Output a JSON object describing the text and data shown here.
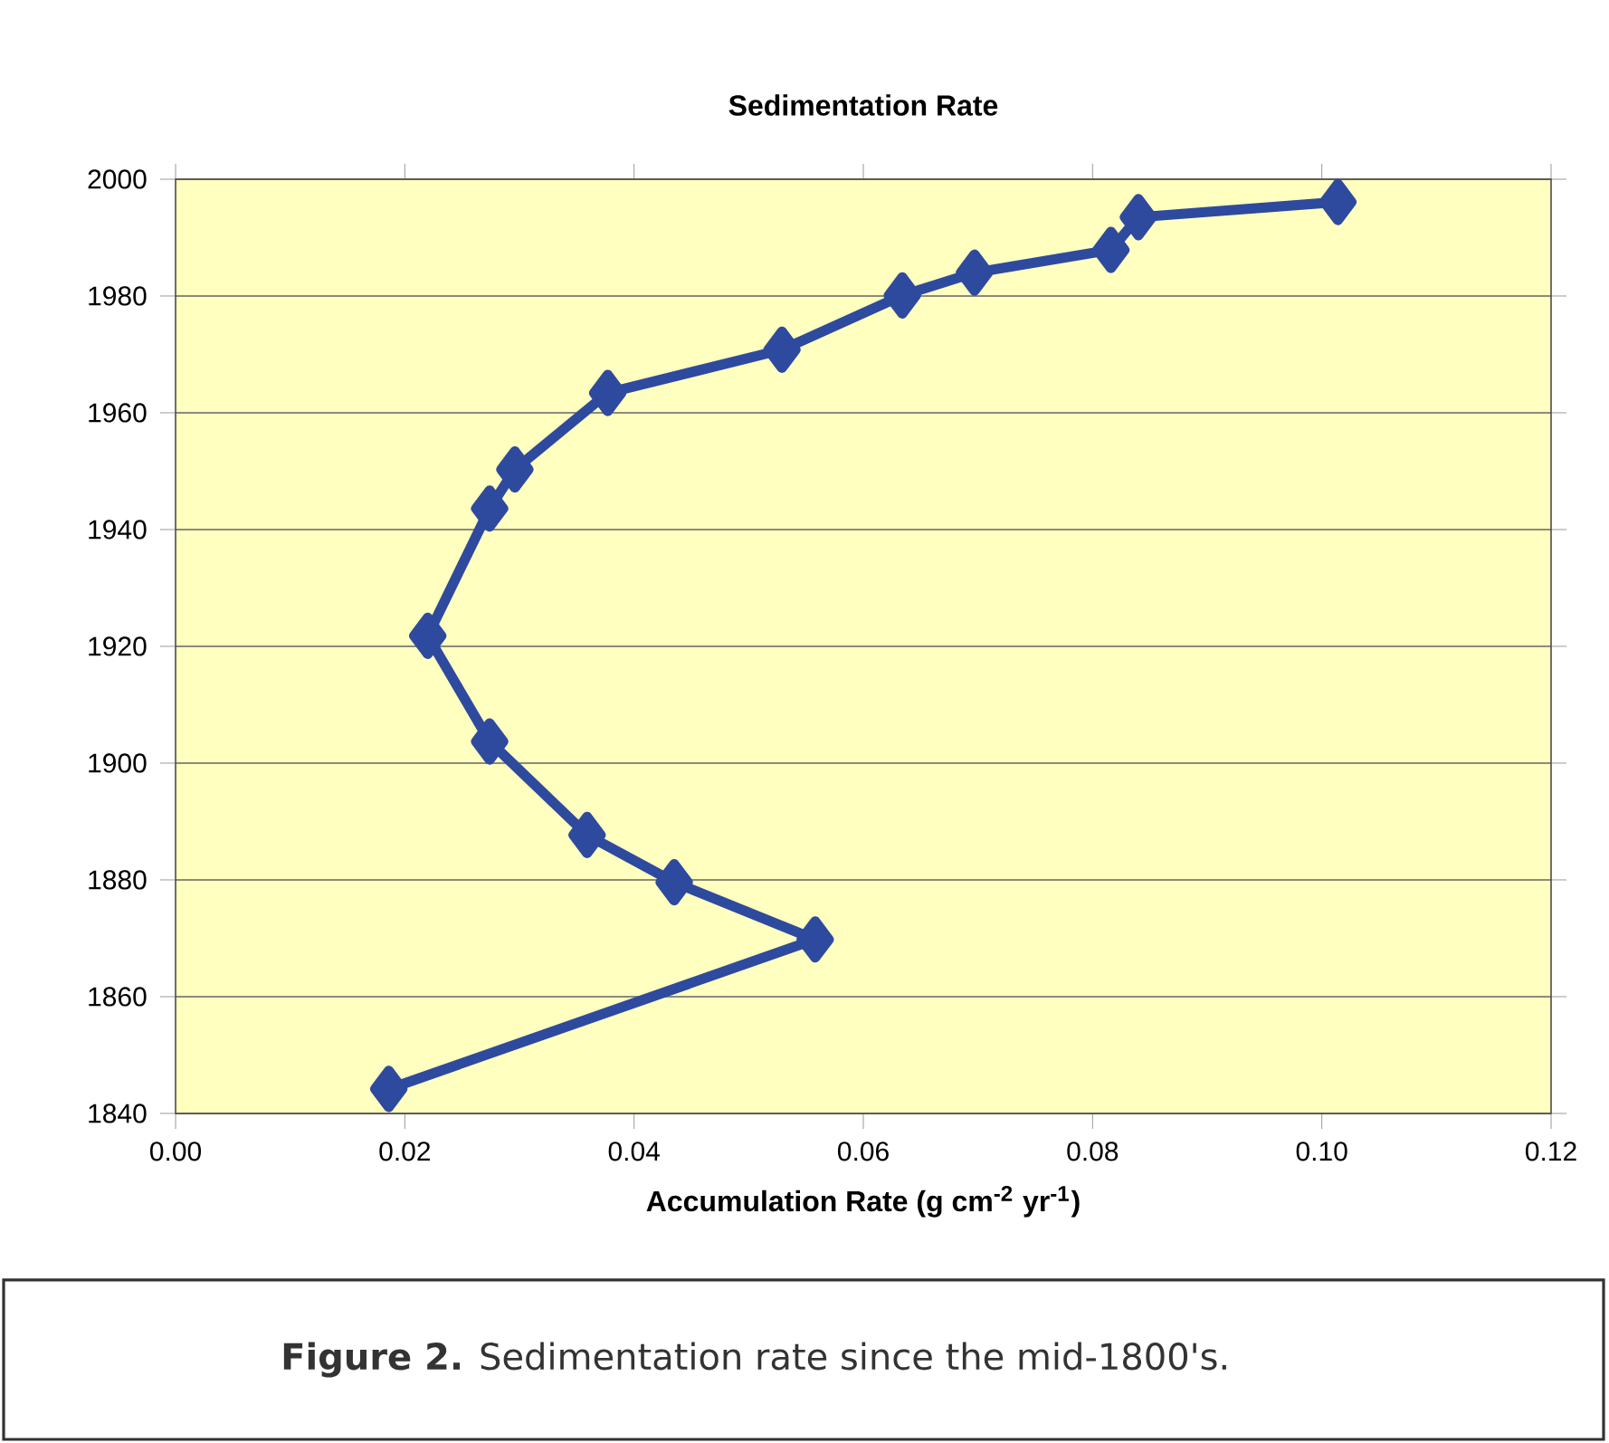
{
  "chart_data": {
    "type": "line",
    "title": "Sedimentation Rate",
    "xlabel": "Accumulation Rate (g cm$^{-2}$ yr$^{-1}$)",
    "x": [
      0.0186,
      0.0558,
      0.0435,
      0.0359,
      0.0274,
      0.022,
      0.0274,
      0.0296,
      0.0377,
      0.0529,
      0.0634,
      0.0697,
      0.0816,
      0.084,
      0.1014
    ],
    "values": [
      1844.2,
      1869.8,
      1879.6,
      1887.7,
      1903.7,
      1921.8,
      1943.6,
      1950.3,
      1963.4,
      1970.8,
      1980.1,
      1984.0,
      1987.9,
      1993.5,
      1996.1
    ],
    "color": "#2e4a9e",
    "marker": "diamond",
    "line_style": "solid",
    "grid": "y",
    "xlim": [
      0,
      0.12
    ],
    "ylim": [
      1840,
      2000
    ],
    "xticks": [
      {
        "value": 0,
        "label": "0.00"
      },
      {
        "value": 0.02,
        "label": "0.02"
      },
      {
        "value": 0.04,
        "label": "0.04"
      },
      {
        "value": 0.06,
        "label": "0.06"
      },
      {
        "value": 0.08,
        "label": "0.08"
      },
      {
        "value": 0.1,
        "label": "0.10"
      },
      {
        "value": 0.12,
        "label": "0.12"
      }
    ],
    "yticks": [
      1840,
      1860,
      1880,
      1900,
      1920,
      1940,
      1960,
      1980,
      2000
    ],
    "annotations": [
      "**Figure 2.** Sedimentation rate since the mid-1800's."
    ]
  }
}
